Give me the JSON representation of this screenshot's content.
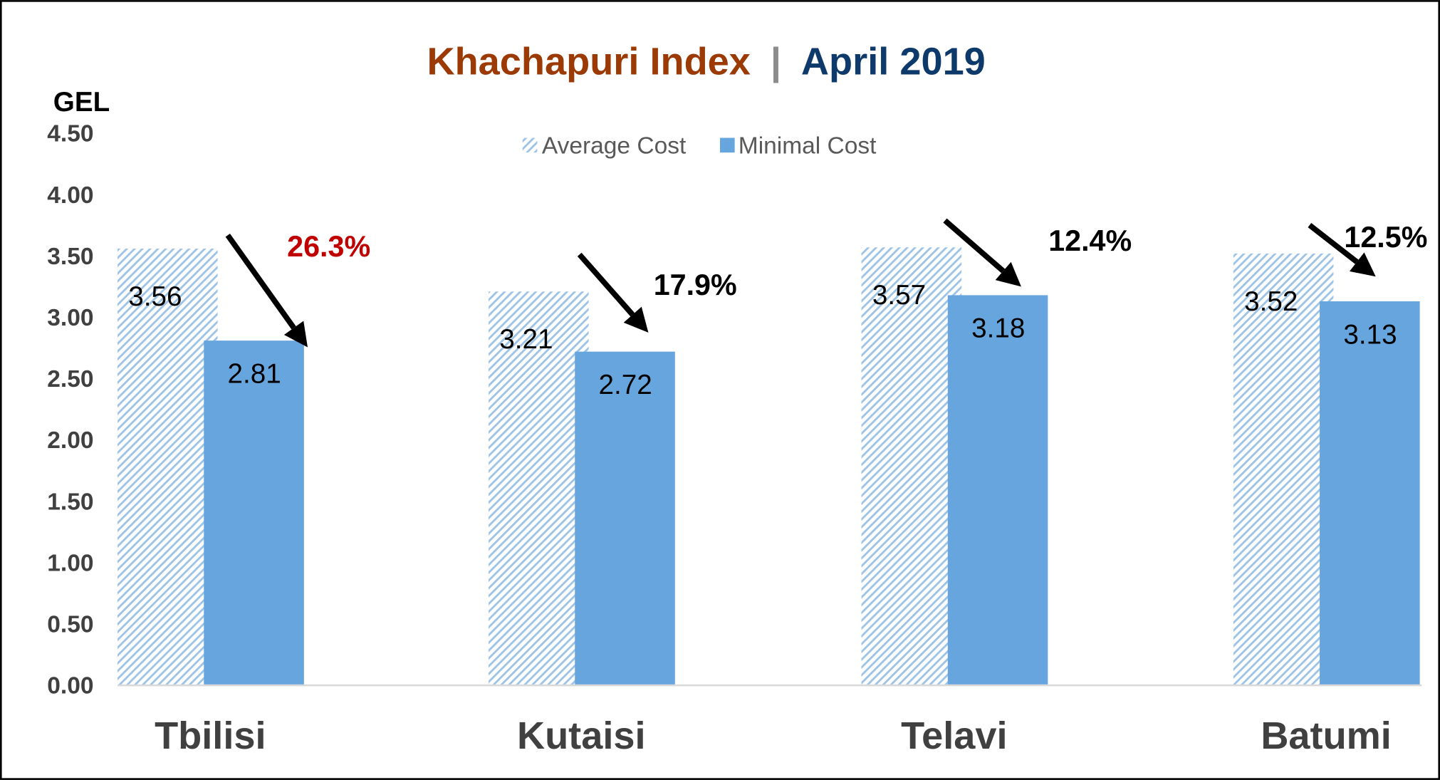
{
  "chart_data": {
    "type": "bar",
    "title_part1": "Khachapuri Index",
    "title_separator": "|",
    "title_part2": "April 2019",
    "ylabel": "GEL",
    "xlabel": "",
    "ylim": [
      0,
      4.5
    ],
    "yticks": [
      "0.00",
      "0.50",
      "1.00",
      "1.50",
      "2.00",
      "2.50",
      "3.00",
      "3.50",
      "4.00",
      "4.50"
    ],
    "grid": false,
    "legend_position": "top-center",
    "categories": [
      "Tbilisi",
      "Kutaisi",
      "Telavi",
      "Batumi"
    ],
    "series": [
      {
        "name": "Average Cost",
        "values": [
          3.56,
          3.21,
          3.57,
          3.52
        ],
        "labels": [
          "3.56",
          "3.21",
          "3.57",
          "3.52"
        ],
        "color": "#9DC3E6",
        "pattern": "diagonal-hatch"
      },
      {
        "name": "Minimal Cost",
        "values": [
          2.81,
          2.72,
          3.18,
          3.13
        ],
        "labels": [
          "2.81",
          "2.72",
          "3.18",
          "3.13"
        ],
        "color": "#67A5DE"
      }
    ],
    "annotations": [
      {
        "text": "26.3%",
        "color": "#C00000"
      },
      {
        "text": "17.9%",
        "color": "#000000"
      },
      {
        "text": "12.4%",
        "color": "#000000"
      },
      {
        "text": "12.5%",
        "color": "#000000"
      }
    ],
    "colors": {
      "title1": "#9C3A06",
      "title2": "#0E3A6B",
      "separator": "#8C8C8C",
      "axis_text": "#404040"
    }
  }
}
